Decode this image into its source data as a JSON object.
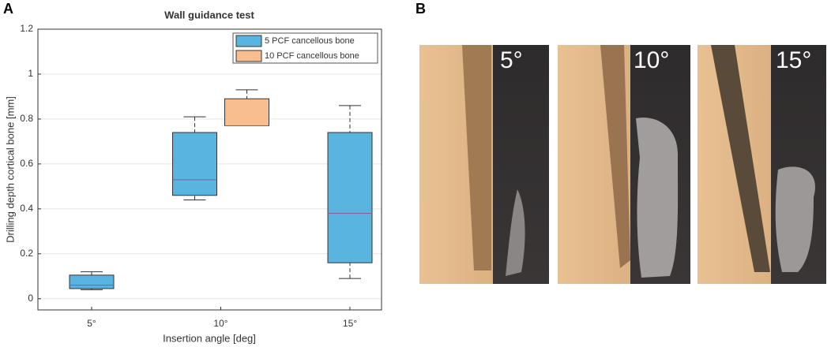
{
  "panel_a_label": "A",
  "chart_data": {
    "type": "box",
    "title": "Wall guidance test",
    "x_label": "Insertion angle [deg]",
    "y_label": "Drilling depth cortical bone [mm]",
    "categories": [
      "5°",
      "10°",
      "15°"
    ],
    "series": [
      {
        "name": "5 PCF cancellous bone",
        "color": "#5ab4e0",
        "values": [
          {
            "min": 0.04,
            "q1": 0.045,
            "median": 0.06,
            "q3": 0.105,
            "max": 0.12
          },
          {
            "min": 0.44,
            "q1": 0.46,
            "median": 0.53,
            "q3": 0.74,
            "max": 0.81
          },
          {
            "min": 0.09,
            "q1": 0.16,
            "median": 0.38,
            "q3": 0.74,
            "max": 0.86
          }
        ]
      },
      {
        "name": "10 PCF cancellous bone",
        "color": "#f9be8f",
        "values": [
          null,
          {
            "min": 0.77,
            "q1": 0.77,
            "median": 0.77,
            "q3": 0.89,
            "max": 0.93
          },
          null
        ]
      }
    ],
    "median_color": "#8a5a9a",
    "ylim": [
      -0.05,
      1.2
    ],
    "yticks": [
      0,
      0.2,
      0.4,
      0.6,
      0.8,
      1,
      1.2
    ],
    "grid": true,
    "legend": "upper right"
  },
  "panel_b": {
    "label": "B",
    "images": [
      "5°",
      "10°",
      "15°"
    ]
  }
}
